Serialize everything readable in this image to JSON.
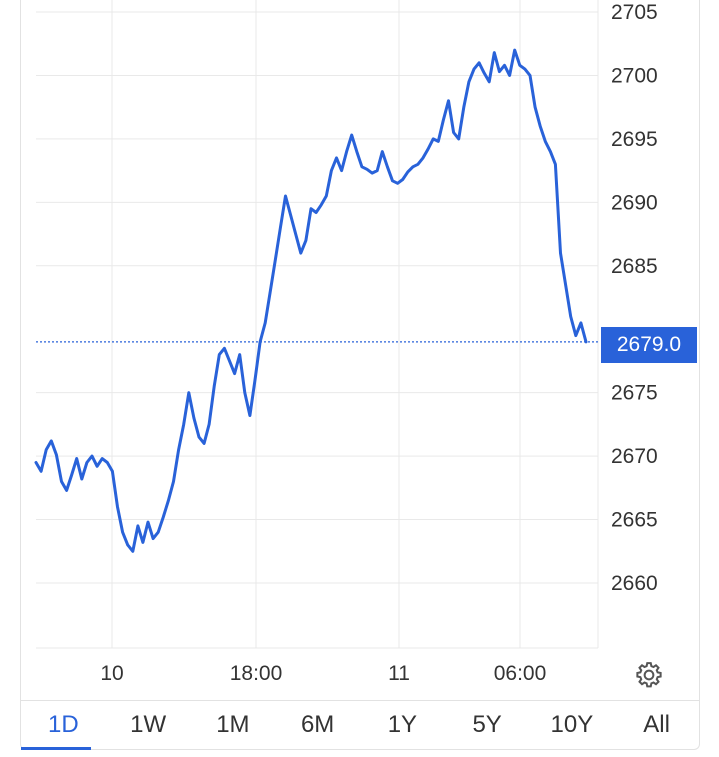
{
  "chart_data": {
    "type": "line",
    "title": "",
    "xlabel": "",
    "ylabel": "",
    "ylim": [
      2655,
      2706
    ],
    "y_ticks": [
      "2705",
      "2700",
      "2695",
      "2690",
      "2685",
      "2675",
      "2670",
      "2665",
      "2660"
    ],
    "x_ticks": [
      "10",
      "18:00",
      "11",
      "06:00"
    ],
    "current_value_label": "2679.0",
    "current_value": 2679.0,
    "grid": true,
    "series": [
      {
        "color": "#2962d9",
        "values": [
          2669.5,
          2668.8,
          2670.5,
          2671.2,
          2670.1,
          2668.0,
          2667.3,
          2668.5,
          2669.8,
          2668.2,
          2669.5,
          2670.0,
          2669.2,
          2669.8,
          2669.5,
          2668.8,
          2666.0,
          2664.0,
          2663.0,
          2662.5,
          2664.5,
          2663.2,
          2664.8,
          2663.5,
          2664.0,
          2665.2,
          2666.5,
          2668.0,
          2670.5,
          2672.5,
          2675.0,
          2673.0,
          2671.5,
          2671.0,
          2672.5,
          2675.5,
          2678.0,
          2678.5,
          2677.5,
          2676.5,
          2678.0,
          2675.0,
          2673.2,
          2676.0,
          2679.0,
          2680.5,
          2683.0,
          2685.5,
          2688.0,
          2690.5,
          2689.0,
          2687.5,
          2686.0,
          2687.0,
          2689.5,
          2689.2,
          2689.8,
          2690.5,
          2692.5,
          2693.5,
          2692.5,
          2694.0,
          2695.3,
          2694.0,
          2692.8,
          2692.6,
          2692.3,
          2692.5,
          2694.0,
          2692.8,
          2691.7,
          2691.5,
          2691.8,
          2692.4,
          2692.8,
          2693.0,
          2693.5,
          2694.2,
          2695.0,
          2694.8,
          2696.5,
          2698.0,
          2695.5,
          2695.0,
          2697.5,
          2699.5,
          2700.5,
          2701.0,
          2700.2,
          2699.5,
          2701.8,
          2700.3,
          2700.8,
          2700.0,
          2702.0,
          2700.8,
          2700.5,
          2700.0,
          2697.5,
          2696.0,
          2694.8,
          2694.0,
          2693.0,
          2686.0,
          2683.5,
          2681.0,
          2679.5,
          2680.5,
          2679.0
        ]
      }
    ]
  },
  "range_tabs": [
    "1D",
    "1W",
    "1M",
    "6M",
    "1Y",
    "5Y",
    "10Y",
    "All"
  ],
  "active_tab": "1D",
  "icons": {
    "settings": "gear-icon"
  },
  "colors": {
    "accent": "#2962d9",
    "grid": "#e9e9e9"
  }
}
